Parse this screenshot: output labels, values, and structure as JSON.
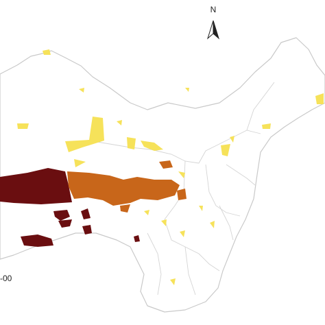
{
  "map": {
    "north_label": "N",
    "legend_label": "-00"
  }
}
